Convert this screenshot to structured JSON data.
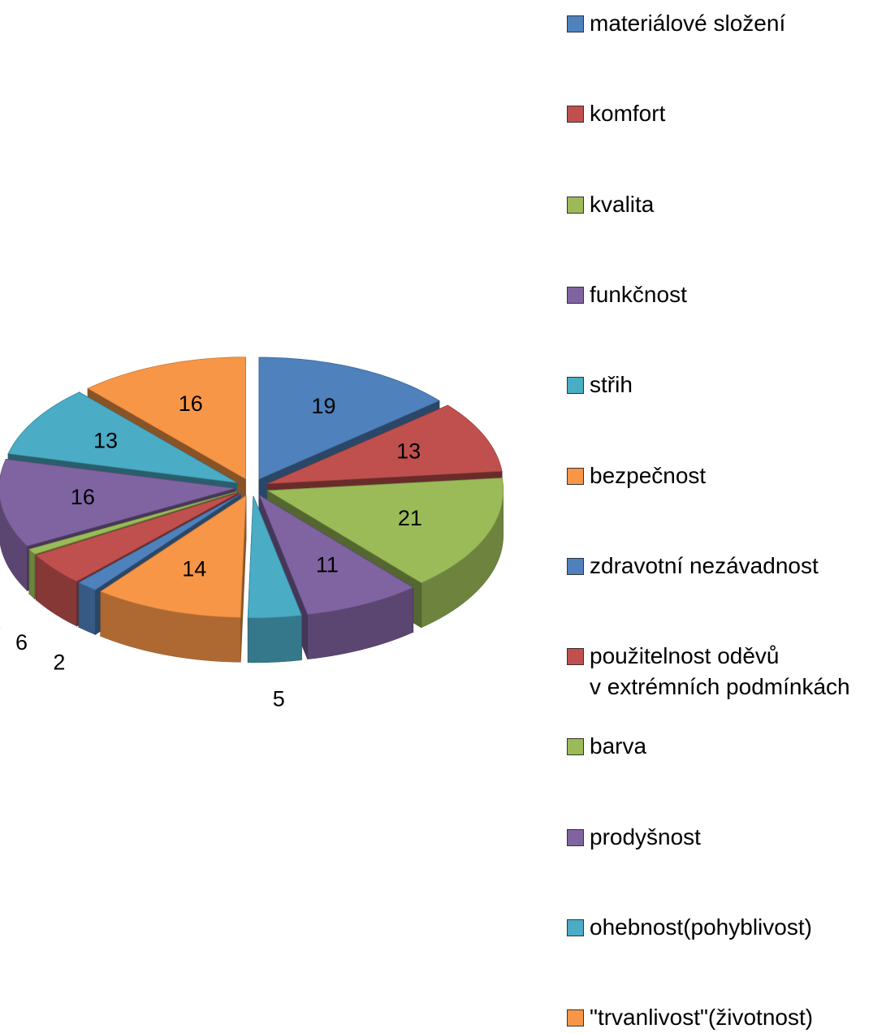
{
  "chart_data": {
    "type": "pie3d",
    "categories": [
      "materiálové složení",
      "komfort",
      "kvalita",
      "funkčnost",
      "střih",
      "bezpečnost",
      "zdravotní nezávadnost",
      "použitelnost oděvů\nv extrémních podmínkách",
      "barva",
      "prodyšnost",
      "ohebnost(pohyblivost)",
      "\"trvanlivost\"(životnost)"
    ],
    "values": [
      19,
      13,
      21,
      11,
      5,
      14,
      2,
      6,
      1,
      16,
      13,
      16
    ],
    "colors": [
      "#4f81bd",
      "#c0504d",
      "#9bbb59",
      "#8064a2",
      "#4bacc6",
      "#f79646",
      "#4f81bd",
      "#c0504d",
      "#9bbb59",
      "#8064a2",
      "#4bacc6",
      "#f79646"
    ],
    "legend": "right"
  }
}
